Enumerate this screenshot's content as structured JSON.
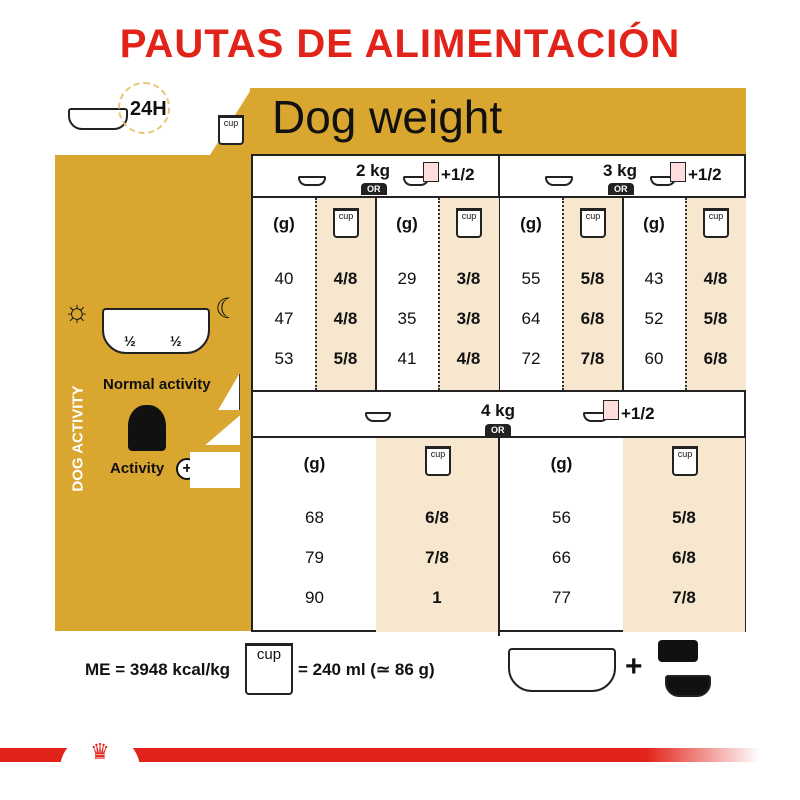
{
  "title": "PAUTAS DE ALIMENTACIÓN",
  "h24": "24H",
  "header": "Dog weight",
  "cup_label": "cup",
  "or_label": "OR",
  "g_label": "(g)",
  "plus_half": "+1/2",
  "half": "½",
  "activity_title": "DOG ACTIVITY",
  "normal_activity": "Normal activity",
  "activity_plus": "Activity",
  "groups_top": [
    {
      "weight": "2 kg",
      "cols": [
        {
          "g": [
            "40",
            "47",
            "53"
          ],
          "cup": [
            "4/8",
            "4/8",
            "5/8"
          ]
        },
        {
          "g": [
            "29",
            "35",
            "41"
          ],
          "cup": [
            "3/8",
            "3/8",
            "4/8"
          ]
        }
      ]
    },
    {
      "weight": "3 kg",
      "cols": [
        {
          "g": [
            "55",
            "64",
            "72"
          ],
          "cup": [
            "5/8",
            "6/8",
            "7/8"
          ]
        },
        {
          "g": [
            "43",
            "52",
            "60"
          ],
          "cup": [
            "4/8",
            "5/8",
            "6/8"
          ]
        }
      ]
    }
  ],
  "group_bottom": {
    "weight": "4 kg",
    "cols": [
      {
        "g": [
          "68",
          "79",
          "90"
        ],
        "cup": [
          "6/8",
          "7/8",
          "1"
        ]
      },
      {
        "g": [
          "56",
          "66",
          "77"
        ],
        "cup": [
          "5/8",
          "6/8",
          "7/8"
        ]
      }
    ]
  },
  "footer": {
    "me": "ME = 3948 kcal/kg",
    "cup_eq": "= 240 ml (≃ 86 g)",
    "plus": "+"
  },
  "colors": {
    "title": "#e2231a",
    "gold": "#d9a630",
    "cream": "#f6e7ce"
  }
}
